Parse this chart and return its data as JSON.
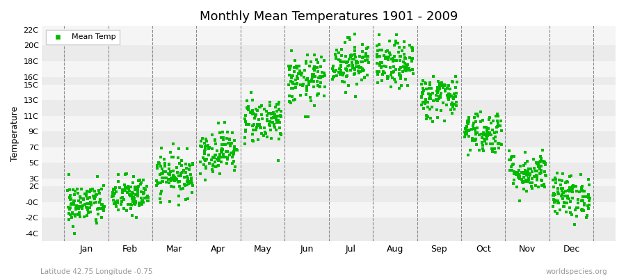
{
  "title": "Monthly Mean Temperatures 1901 - 2009",
  "ylabel": "Temperature",
  "subtitle": "Latitude 42.75 Longitude -0.75",
  "watermark": "worldspecies.org",
  "legend_label": "Mean Temp",
  "dot_color": "#00bb00",
  "months": [
    "Jan",
    "Feb",
    "Mar",
    "Apr",
    "May",
    "Jun",
    "Jul",
    "Aug",
    "Sep",
    "Oct",
    "Nov",
    "Dec"
  ],
  "month_means": [
    -0.3,
    0.8,
    3.5,
    6.5,
    10.5,
    15.5,
    17.8,
    17.5,
    13.5,
    9.0,
    3.8,
    0.8
  ],
  "month_stds": [
    1.4,
    1.3,
    1.4,
    1.4,
    1.5,
    1.6,
    1.5,
    1.5,
    1.4,
    1.4,
    1.3,
    1.4
  ],
  "ylim_low": -5,
  "ylim_high": 22.5,
  "ytick_vals": [
    -4,
    -2,
    0,
    2,
    3,
    5,
    7,
    9,
    11,
    13,
    15,
    16,
    18,
    20,
    22
  ],
  "ytick_labels": [
    "-4C",
    "-2C",
    "-0C",
    "2C",
    "3C",
    "5C",
    "7C",
    "9C",
    "11C",
    "13C",
    "15C",
    "16C",
    "18C",
    "20C",
    "22C"
  ],
  "n_years": 109,
  "seed": 42,
  "band_colors": [
    "#ebebeb",
    "#f5f5f5"
  ],
  "figsize": [
    9.0,
    4.0
  ],
  "dpi": 100
}
